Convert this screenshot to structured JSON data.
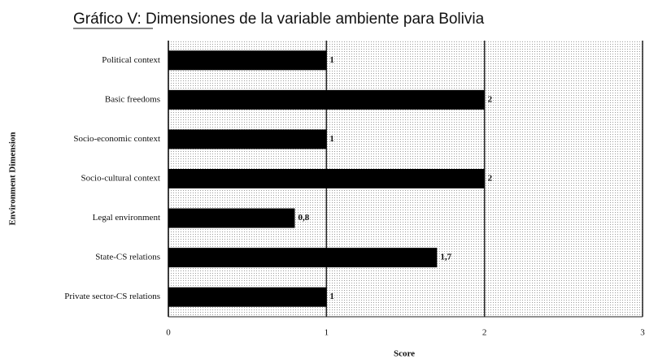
{
  "chart_data": {
    "type": "bar",
    "orientation": "horizontal",
    "title": "Gráfico V: Dimensiones de la variable ambiente para Bolivia",
    "x_label": "Score",
    "y_label": "Environment Dimension",
    "categories": [
      "Political context",
      "Basic freedoms",
      "Socio-economic context",
      "Socio-cultural context",
      "Legal environment",
      "State-CS relations",
      "Private sector-CS relations"
    ],
    "values": [
      1,
      2,
      1,
      2,
      0.8,
      1.7,
      1
    ],
    "value_labels": [
      "1",
      "2",
      "1",
      "2",
      "0,8",
      "1,7",
      "1"
    ],
    "color": "#000000",
    "xlim": [
      0,
      3
    ],
    "xticks": [
      0,
      1,
      2,
      3
    ],
    "grid": true
  }
}
